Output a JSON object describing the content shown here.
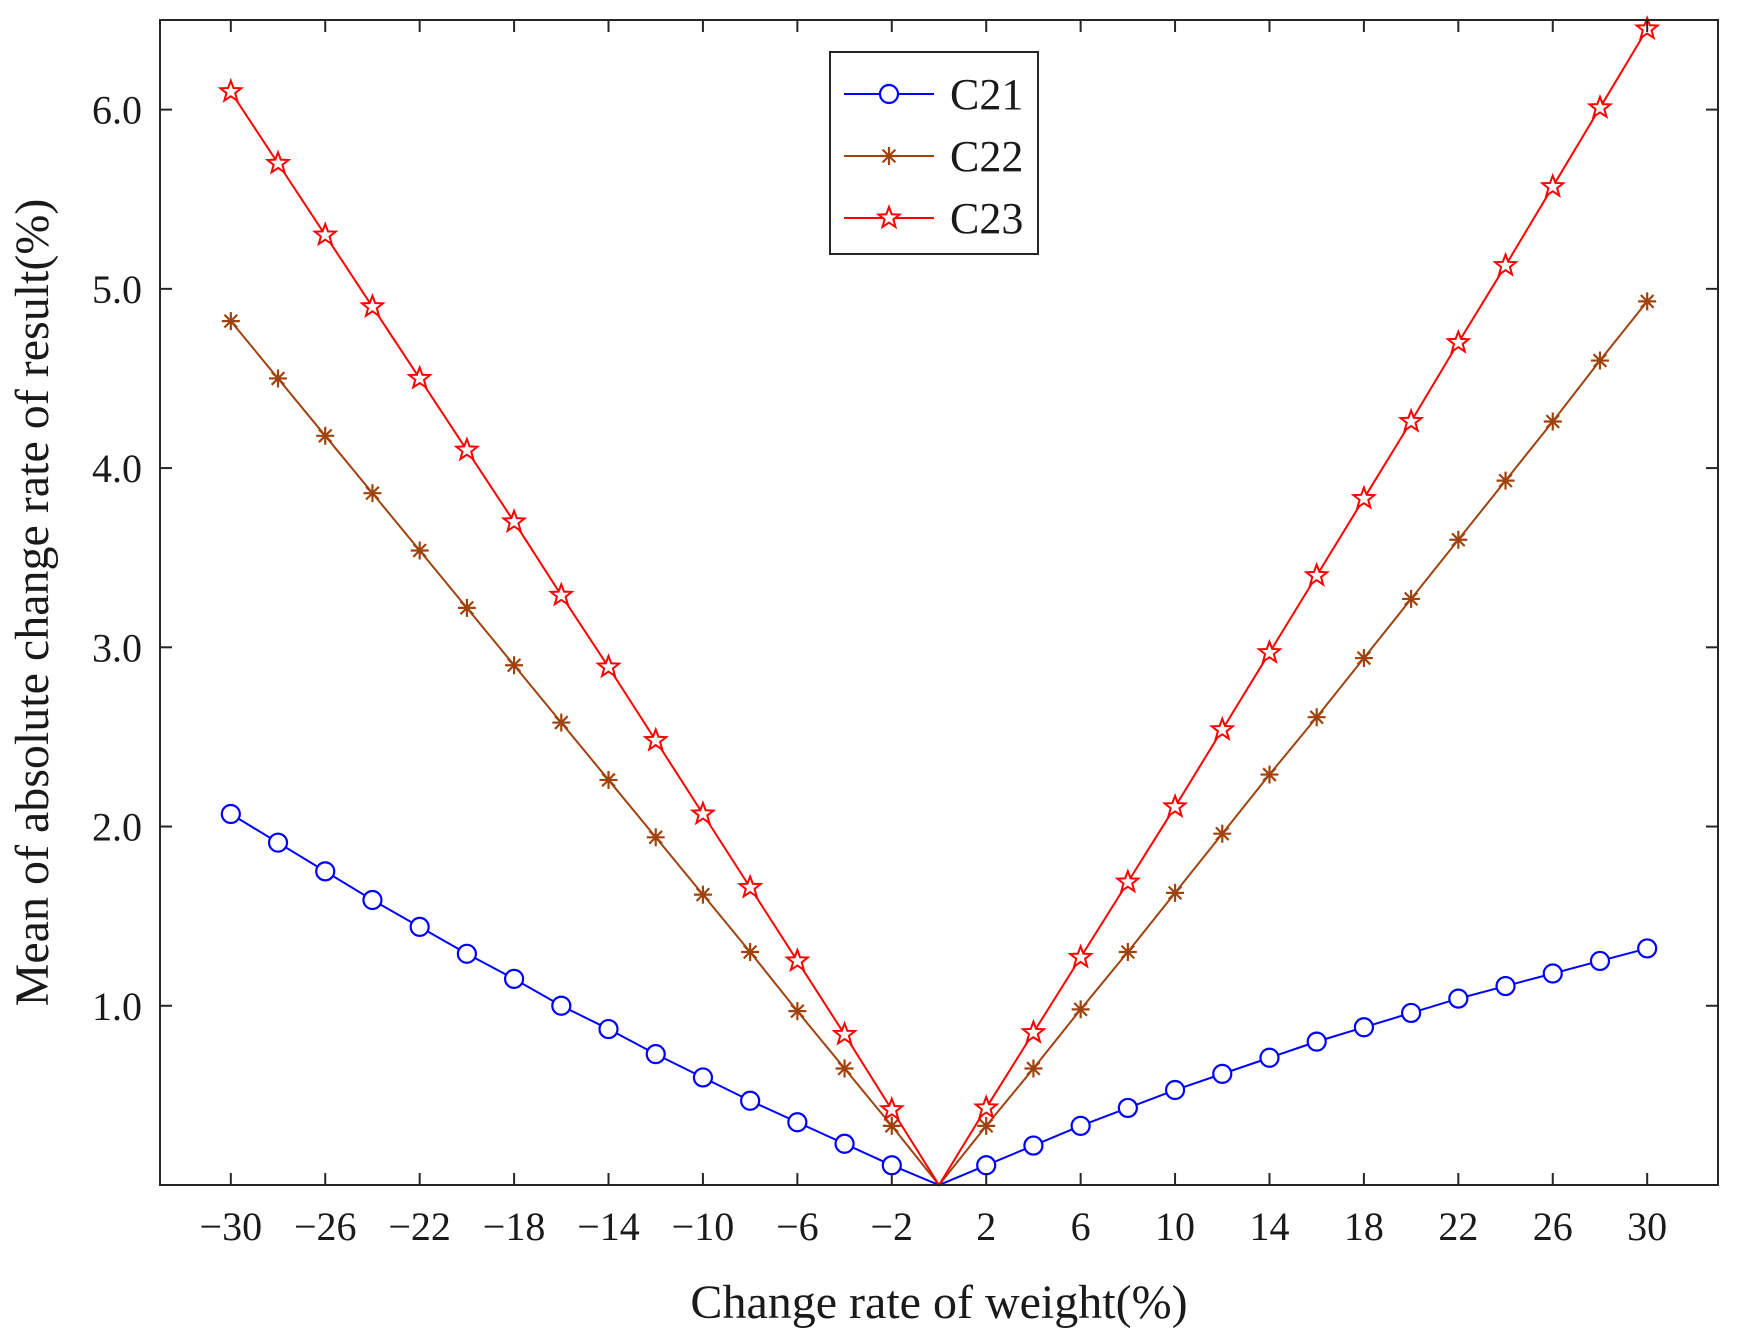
{
  "chart_data": {
    "type": "line",
    "xlabel": "Change rate of weight(%)",
    "ylabel": "Mean of absolute change rate of result(%)",
    "xlim": [
      -33,
      33
    ],
    "ylim": [
      0,
      6.5
    ],
    "xticks": [
      -30,
      -26,
      -22,
      -18,
      -14,
      -10,
      -6,
      -2,
      2,
      6,
      10,
      14,
      18,
      22,
      26,
      30
    ],
    "xtick_labels": [
      "−30",
      "−26",
      "−22",
      "−18",
      "−14",
      "−10",
      "−6",
      "−2",
      "2",
      "6",
      "10",
      "14",
      "18",
      "22",
      "26",
      "30"
    ],
    "yticks": [
      1,
      2,
      3,
      4,
      5,
      6
    ],
    "ytick_labels": [
      "1.0",
      "2.0",
      "3.0",
      "4.0",
      "5.0",
      "6.0"
    ],
    "grid": false,
    "legend_position": "top-center",
    "x": [
      -30,
      -28,
      -26,
      -24,
      -22,
      -20,
      -18,
      -16,
      -14,
      -12,
      -10,
      -8,
      -6,
      -4,
      -2,
      0,
      2,
      4,
      6,
      8,
      10,
      12,
      14,
      16,
      18,
      20,
      22,
      24,
      26,
      28,
      30
    ],
    "series": [
      {
        "name": "C21",
        "color": "#0000ff",
        "marker": "circle",
        "values": [
          2.07,
          1.91,
          1.75,
          1.59,
          1.44,
          1.29,
          1.15,
          1.0,
          0.87,
          0.73,
          0.6,
          0.47,
          0.35,
          0.23,
          0.11,
          0,
          0.11,
          0.22,
          0.33,
          0.43,
          0.53,
          0.62,
          0.71,
          0.8,
          0.88,
          0.96,
          1.04,
          1.11,
          1.18,
          1.25,
          1.32
        ]
      },
      {
        "name": "C22",
        "color": "#a0420d",
        "marker": "asterisk",
        "values": [
          4.82,
          4.5,
          4.18,
          3.86,
          3.54,
          3.22,
          2.9,
          2.58,
          2.26,
          1.94,
          1.62,
          1.3,
          0.97,
          0.65,
          0.33,
          0,
          0.33,
          0.65,
          0.98,
          1.3,
          1.63,
          1.96,
          2.29,
          2.61,
          2.94,
          3.27,
          3.6,
          3.93,
          4.26,
          4.6,
          4.93
        ]
      },
      {
        "name": "C23",
        "color": "#ff0000",
        "marker": "star",
        "values": [
          6.1,
          5.7,
          5.3,
          4.9,
          4.5,
          4.1,
          3.7,
          3.29,
          2.89,
          2.48,
          2.07,
          1.66,
          1.25,
          0.84,
          0.42,
          0,
          0.43,
          0.85,
          1.27,
          1.69,
          2.11,
          2.54,
          2.97,
          3.4,
          3.83,
          4.26,
          4.7,
          5.13,
          5.57,
          6.01,
          6.45
        ]
      }
    ]
  }
}
